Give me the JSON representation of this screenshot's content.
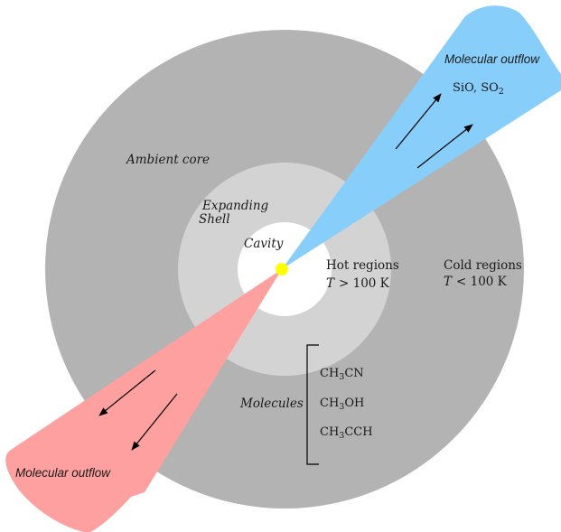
{
  "colors": {
    "background": "#ffffff",
    "ambient_core": "#b3b3b3",
    "expanding_shell": "#d3d3d3",
    "cavity": "#ffffff",
    "protostar": "#ffff00",
    "blue_outflow": "#87cefa",
    "red_outflow": "#ffa0a0",
    "arrow": "#000000"
  },
  "labels": {
    "ambient_core": "Ambient core",
    "expanding_shell_line1": "Expanding",
    "expanding_shell_line2": "Shell",
    "cavity": "Cavity",
    "hot_regions": "Hot regions",
    "hot_temp_var": "T",
    "hot_temp_rel": "> 100 K",
    "cold_regions": "Cold regions",
    "cold_temp_var": "T",
    "cold_temp_rel": "< 100 K",
    "outflow_blue": "Molecular outflow",
    "outflow_red": "Molecular outflow",
    "molecules_title": "Molecules"
  },
  "outflow_species": {
    "first": {
      "base": "SiO, SO",
      "sub": "2"
    }
  },
  "molecules": [
    {
      "pre": "CH",
      "sub": "3",
      "post": "CN"
    },
    {
      "pre": "CH",
      "sub": "3",
      "post": "OH"
    },
    {
      "pre": "CH",
      "sub": "3",
      "post": "CCH"
    }
  ],
  "icons": {
    "protostar": "yellow-dot-icon",
    "flow_arrows": "arrow-icon"
  }
}
